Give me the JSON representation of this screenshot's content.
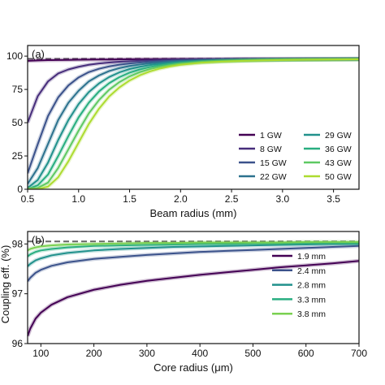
{
  "ylabel_partial": "Coupling eff. (%)",
  "chart_data": [
    {
      "type": "line",
      "panel_label": "(a)",
      "xlabel": "Beam radius (mm)",
      "ylabel": "Coupling eff. (%)",
      "xlim": [
        0.5,
        3.75
      ],
      "ylim": [
        0,
        108
      ],
      "xticks": [
        0.5,
        1.0,
        1.5,
        2.0,
        2.5,
        3.0,
        3.5
      ],
      "xtick_labels": [
        "0.5",
        "1.0",
        "1.5",
        "2.0",
        "2.5",
        "3.0",
        "3.5"
      ],
      "yticks": [
        0,
        25,
        50,
        75,
        100
      ],
      "ytick_labels": [
        "0",
        "25",
        "50",
        "75",
        "100"
      ],
      "reference_line": 98,
      "legend_position": "lower-right",
      "x": [
        0.5,
        0.6,
        0.7,
        0.8,
        0.9,
        1.0,
        1.1,
        1.2,
        1.3,
        1.4,
        1.5,
        1.6,
        1.7,
        1.8,
        1.9,
        2.0,
        2.2,
        2.4,
        2.6,
        2.8,
        3.0,
        3.25,
        3.5,
        3.75
      ],
      "series": [
        {
          "name": "1 GW",
          "color": "#440154",
          "values": [
            96.5,
            96.8,
            97.0,
            97.1,
            97.2,
            97.3,
            97.4,
            97.5,
            97.5,
            97.6,
            97.6,
            97.7,
            97.7,
            97.7,
            97.8,
            97.8,
            97.8,
            97.8,
            97.9,
            97.9,
            97.9,
            97.9,
            97.9,
            98.0
          ]
        },
        {
          "name": "8 GW",
          "color": "#472d7b",
          "values": [
            50,
            70,
            81,
            87,
            90,
            92,
            93.5,
            94.5,
            95.2,
            95.8,
            96.2,
            96.5,
            96.8,
            97.0,
            97.1,
            97.2,
            97.4,
            97.5,
            97.6,
            97.7,
            97.7,
            97.8,
            97.8,
            97.8
          ]
        },
        {
          "name": "15 GW",
          "color": "#3b528b",
          "values": [
            12,
            34,
            55,
            69,
            78,
            84,
            88,
            90.5,
            92.3,
            93.6,
            94.5,
            95.2,
            95.7,
            96.1,
            96.4,
            96.7,
            97.0,
            97.2,
            97.4,
            97.5,
            97.6,
            97.7,
            97.7,
            97.8
          ]
        },
        {
          "name": "22 GW",
          "color": "#2c728e",
          "values": [
            4,
            16,
            34,
            52,
            65,
            74,
            81,
            85.5,
            88.8,
            91.0,
            92.6,
            93.7,
            94.6,
            95.2,
            95.7,
            96.1,
            96.6,
            97.0,
            97.2,
            97.4,
            97.5,
            97.6,
            97.7,
            97.8
          ]
        },
        {
          "name": "29 GW",
          "color": "#21918c",
          "values": [
            1,
            7,
            20,
            37,
            52,
            64,
            73,
            79.5,
            84.3,
            87.8,
            90.3,
            92.0,
            93.3,
            94.2,
            94.9,
            95.5,
            96.2,
            96.7,
            97.0,
            97.2,
            97.4,
            97.5,
            97.6,
            97.7
          ]
        },
        {
          "name": "36 GW",
          "color": "#28ae80",
          "values": [
            0,
            3,
            11,
            25,
            40,
            54,
            65,
            73.5,
            79.7,
            84.2,
            87.6,
            90.0,
            91.8,
            93.1,
            94.1,
            94.8,
            95.8,
            96.4,
            96.8,
            97.1,
            97.3,
            97.5,
            97.6,
            97.7
          ]
        },
        {
          "name": "43 GW",
          "color": "#5ec962",
          "values": [
            0,
            1,
            5,
            16,
            30,
            44,
            57,
            67,
            74.8,
            80.5,
            84.8,
            88.0,
            90.3,
            92.0,
            93.2,
            94.2,
            95.4,
            96.1,
            96.6,
            97.0,
            97.2,
            97.4,
            97.5,
            97.6
          ]
        },
        {
          "name": "50 GW",
          "color": "#addc30",
          "values": [
            0,
            0,
            2,
            9,
            21,
            35,
            49,
            60.5,
            69.7,
            76.5,
            81.7,
            85.6,
            88.5,
            90.7,
            92.3,
            93.5,
            95.0,
            95.9,
            96.4,
            96.8,
            97.1,
            97.3,
            97.5,
            97.6
          ]
        }
      ]
    },
    {
      "type": "line",
      "panel_label": "(b)",
      "xlabel": "Core radius (μm)",
      "ylabel": "Coupling eff. (%)",
      "xlim": [
        75,
        700
      ],
      "ylim": [
        96,
        98.25
      ],
      "xticks": [
        100,
        200,
        300,
        400,
        500,
        600,
        700
      ],
      "xtick_labels": [
        "100",
        "200",
        "300",
        "400",
        "500",
        "600",
        "700"
      ],
      "yticks": [
        96,
        97,
        98
      ],
      "ytick_labels": [
        "96",
        "97",
        "98"
      ],
      "reference_line": 98.05,
      "legend_position": "lower-right",
      "x": [
        75,
        80,
        90,
        100,
        120,
        150,
        200,
        250,
        300,
        350,
        400,
        450,
        500,
        550,
        600,
        650,
        700
      ],
      "series": [
        {
          "name": "1.9 mm",
          "color": "#440154",
          "values": [
            96.15,
            96.3,
            96.5,
            96.62,
            96.78,
            96.93,
            97.08,
            97.18,
            97.26,
            97.32,
            97.38,
            97.43,
            97.48,
            97.53,
            97.57,
            97.61,
            97.66
          ]
        },
        {
          "name": "2.4 mm",
          "color": "#3b528b",
          "values": [
            97.25,
            97.32,
            97.42,
            97.48,
            97.56,
            97.63,
            97.7,
            97.74,
            97.78,
            97.81,
            97.84,
            97.86,
            97.88,
            97.9,
            97.92,
            97.94,
            97.96
          ]
        },
        {
          "name": "2.8 mm",
          "color": "#21918c",
          "values": [
            97.55,
            97.6,
            97.67,
            97.71,
            97.77,
            97.82,
            97.87,
            97.9,
            97.92,
            97.94,
            97.95,
            97.96,
            97.97,
            97.98,
            97.99,
            98.0,
            98.0
          ]
        },
        {
          "name": "3.3 mm",
          "color": "#28ae80",
          "values": [
            97.75,
            97.79,
            97.84,
            97.87,
            97.9,
            97.93,
            97.96,
            97.97,
            97.98,
            97.99,
            98.0,
            98.0,
            98.01,
            98.01,
            98.02,
            98.02,
            98.02
          ]
        },
        {
          "name": "3.8 mm",
          "color": "#7ad151",
          "values": [
            97.87,
            97.9,
            97.93,
            97.95,
            97.97,
            97.99,
            98.0,
            98.01,
            98.02,
            98.02,
            98.03,
            98.03,
            98.03,
            98.03,
            98.04,
            98.04,
            98.04
          ]
        }
      ]
    }
  ]
}
